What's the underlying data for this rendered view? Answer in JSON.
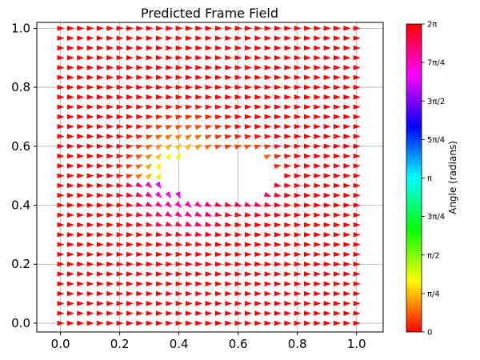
{
  "chart_data": {
    "type": "quiver",
    "title": "Predicted Frame Field",
    "xlim": [
      -0.08,
      1.09
    ],
    "ylim": [
      -0.03,
      1.02
    ],
    "xticks": [
      0.0,
      0.2,
      0.4,
      0.6,
      0.8,
      1.0
    ],
    "xtick_labels": [
      "0.0",
      "0.2",
      "0.4",
      "0.6",
      "0.8",
      "1.0"
    ],
    "yticks": [
      0.0,
      0.2,
      0.4,
      0.6,
      0.8,
      1.0
    ],
    "ytick_labels": [
      "0.0",
      "0.2",
      "0.4",
      "0.6",
      "0.8",
      "1.0"
    ],
    "grid": true,
    "vector_grid": {
      "x_start": 0.0,
      "x_end": 1.0,
      "y_start": 0.0,
      "y_end": 1.0,
      "count": 31
    },
    "default_angle": 0.0,
    "hole": {
      "center": [
        0.54,
        0.5
      ],
      "radius_x": 0.2,
      "radius_y": 0.09
    },
    "vortices": [
      {
        "center": [
          0.45,
          0.5
        ],
        "strength": 1.0,
        "influence": 0.3
      },
      {
        "center": [
          0.67,
          0.5
        ],
        "strength": 1.0,
        "influence": 0.17
      }
    ],
    "colorbar": {
      "label": "Angle (radians)",
      "range": [
        0,
        6.2832
      ],
      "ticks": [
        0,
        0.7854,
        1.5708,
        2.3562,
        3.1416,
        3.927,
        4.7124,
        5.4978,
        6.2832
      ],
      "tick_labels": [
        "0",
        "π/4",
        "π/2",
        "3π/4",
        "π",
        "5π/4",
        "3π/2",
        "7π/4",
        "2π"
      ],
      "colormap": "hsv"
    }
  }
}
